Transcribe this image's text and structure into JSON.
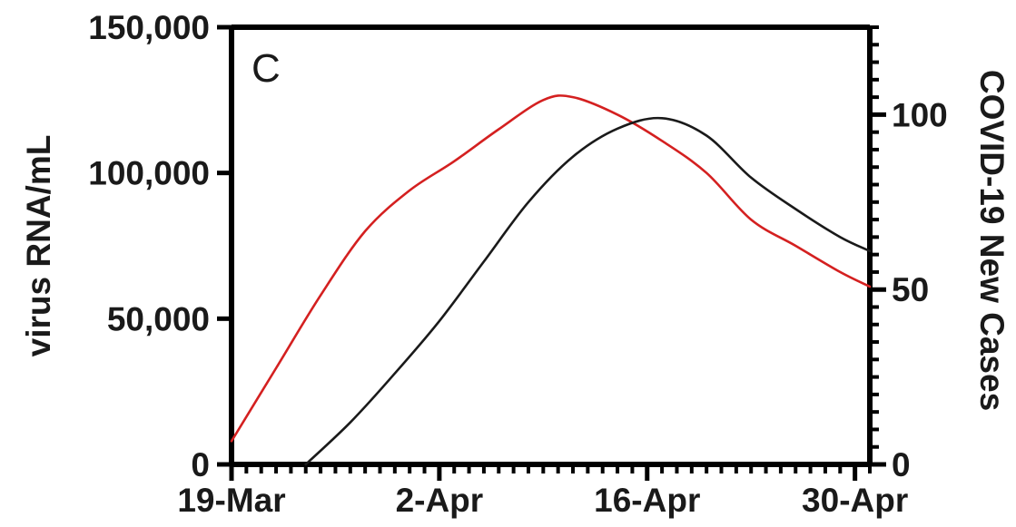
{
  "chart_data": {
    "type": "line",
    "panel_label": "C",
    "title": "",
    "xlabel": "",
    "ylabel": "virus RNA/mL",
    "y2label": "COVID-19 New Cases",
    "x_tick_labels": [
      "19-Mar",
      "2-Apr",
      "16-Apr",
      "30-Apr"
    ],
    "xlim": [
      "2020-03-19",
      "2020-05-01"
    ],
    "ylim": [
      0,
      150000
    ],
    "y_tick_labels": [
      "0",
      "50,000",
      "100,000",
      "150,000"
    ],
    "y_ticks": [
      0,
      50000,
      100000,
      150000
    ],
    "y2lim": [
      0,
      125
    ],
    "y2_tick_labels": [
      "0",
      "50",
      "100"
    ],
    "y2_ticks": [
      0,
      50,
      100
    ],
    "grid": false,
    "legend": "none",
    "series": [
      {
        "color": "#d42020",
        "axis": "left",
        "x": [
          "2020-03-19",
          "2020-03-22",
          "2020-03-25",
          "2020-03-28",
          "2020-03-31",
          "2020-04-03",
          "2020-04-06",
          "2020-04-09",
          "2020-04-11",
          "2020-04-14",
          "2020-04-17",
          "2020-04-20",
          "2020-04-23",
          "2020-04-26",
          "2020-04-29",
          "2020-05-01"
        ],
        "y": [
          8000,
          33000,
          58000,
          80000,
          94000,
          104000,
          115000,
          125000,
          126000,
          120000,
          111000,
          100000,
          84000,
          75000,
          66000,
          61000
        ]
      },
      {
        "color": "#1a1a1a",
        "axis": "right",
        "x": [
          "2020-03-24",
          "2020-03-27",
          "2020-03-30",
          "2020-04-02",
          "2020-04-05",
          "2020-04-08",
          "2020-04-11",
          "2020-04-14",
          "2020-04-17",
          "2020-04-20",
          "2020-04-23",
          "2020-04-26",
          "2020-04-29",
          "2020-05-01"
        ],
        "y": [
          0,
          12,
          26,
          41,
          58,
          75,
          88,
          96,
          99,
          94,
          82,
          73,
          65,
          61
        ]
      }
    ]
  }
}
